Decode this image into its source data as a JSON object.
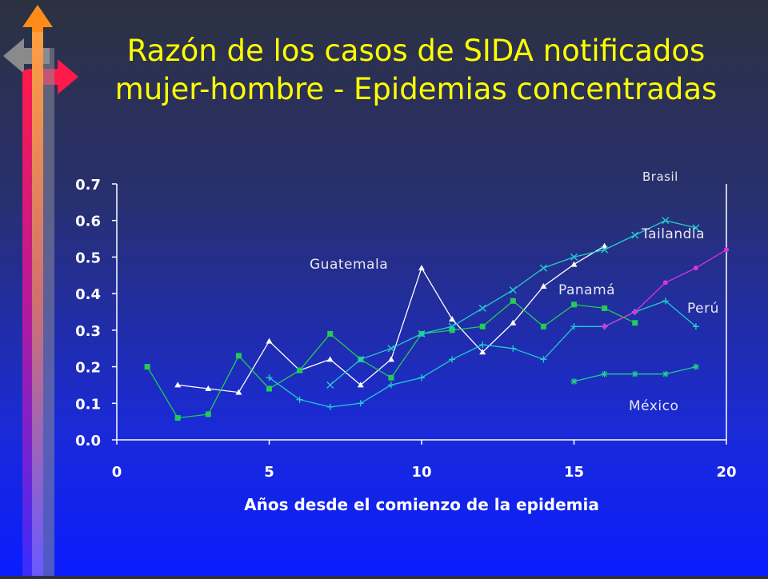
{
  "slide": {
    "title_line1": "Razón de los casos de SIDA notificados",
    "title_line2": "mujer-hombre - Epidemias concentradas"
  },
  "decor": {
    "arrow_icon_colors": [
      "#ff8c1a",
      "#ff1a4a",
      "#8a8a8a",
      "#3a2cff"
    ]
  },
  "chart_data": {
    "type": "line",
    "xlabel": "Años desde el comienzo de la epidemia",
    "ylabel": "",
    "xlim": [
      0,
      20
    ],
    "ylim": [
      0,
      0.7
    ],
    "x_ticks": [
      "0",
      "5",
      "10",
      "15",
      "20"
    ],
    "y_ticks": [
      "0.0",
      "0.1",
      "0.2",
      "0.3",
      "0.4",
      "0.5",
      "0.6",
      "0.7"
    ],
    "grid": false,
    "series": [
      {
        "name": "Guatemala",
        "color": "#ffffff",
        "marker": "triangle",
        "points": [
          [
            2,
            0.15
          ],
          [
            3,
            0.14
          ],
          [
            4,
            0.13
          ],
          [
            5,
            0.27
          ],
          [
            6,
            0.19
          ],
          [
            7,
            0.22
          ],
          [
            8,
            0.15
          ],
          [
            9,
            0.22
          ],
          [
            10,
            0.47
          ],
          [
            11,
            0.33
          ],
          [
            12,
            0.24
          ],
          [
            13,
            0.32
          ],
          [
            14,
            0.42
          ],
          [
            15,
            0.48
          ],
          [
            16,
            0.53
          ]
        ]
      },
      {
        "name": "Panamá",
        "color": "#22cc55",
        "marker": "square",
        "points": [
          [
            1,
            0.2
          ],
          [
            2,
            0.06
          ],
          [
            3,
            0.07
          ],
          [
            4,
            0.23
          ],
          [
            5,
            0.14
          ],
          [
            6,
            0.19
          ],
          [
            7,
            0.29
          ],
          [
            8,
            0.22
          ],
          [
            9,
            0.17
          ],
          [
            10,
            0.29
          ],
          [
            11,
            0.3
          ],
          [
            12,
            0.31
          ],
          [
            13,
            0.38
          ],
          [
            14,
            0.31
          ],
          [
            15,
            0.37
          ],
          [
            16,
            0.36
          ],
          [
            17,
            0.32
          ]
        ]
      },
      {
        "name": "Tailandia",
        "color": "#22cccc",
        "marker": "x",
        "points": [
          [
            7,
            0.15
          ],
          [
            8,
            0.22
          ],
          [
            9,
            0.25
          ],
          [
            10,
            0.29
          ],
          [
            11,
            0.31
          ],
          [
            12,
            0.36
          ],
          [
            13,
            0.41
          ],
          [
            14,
            0.47
          ],
          [
            15,
            0.5
          ],
          [
            16,
            0.52
          ],
          [
            17,
            0.56
          ],
          [
            18,
            0.6
          ],
          [
            19,
            0.58
          ]
        ]
      },
      {
        "name": "Perú",
        "color": "#22cccc",
        "marker": "plus",
        "points": [
          [
            5,
            0.17
          ],
          [
            6,
            0.11
          ],
          [
            7,
            0.09
          ],
          [
            8,
            0.1
          ],
          [
            9,
            0.15
          ],
          [
            10,
            0.17
          ],
          [
            11,
            0.22
          ],
          [
            12,
            0.26
          ],
          [
            13,
            0.25
          ],
          [
            14,
            0.22
          ],
          [
            15,
            0.31
          ],
          [
            16,
            0.31
          ],
          [
            17,
            0.35
          ],
          [
            18,
            0.38
          ],
          [
            19,
            0.31
          ]
        ]
      },
      {
        "name": "México",
        "color": "#22cc88",
        "marker": "asterisk",
        "points": [
          [
            15,
            0.16
          ],
          [
            16,
            0.18
          ],
          [
            17,
            0.18
          ],
          [
            18,
            0.18
          ],
          [
            19,
            0.2
          ]
        ]
      },
      {
        "name": "Brasil",
        "color": "#dd33dd",
        "marker": "dot",
        "points": [
          [
            16,
            0.31
          ],
          [
            17,
            0.35
          ],
          [
            18,
            0.43
          ],
          [
            19,
            0.47
          ],
          [
            20,
            0.52
          ]
        ]
      }
    ],
    "labels": {
      "brasil": "Brasil",
      "tailandia": "Tailandia",
      "guatemala": "Guatemala",
      "panama": "Panamá",
      "peru": "Perú",
      "mexico": "México"
    }
  }
}
